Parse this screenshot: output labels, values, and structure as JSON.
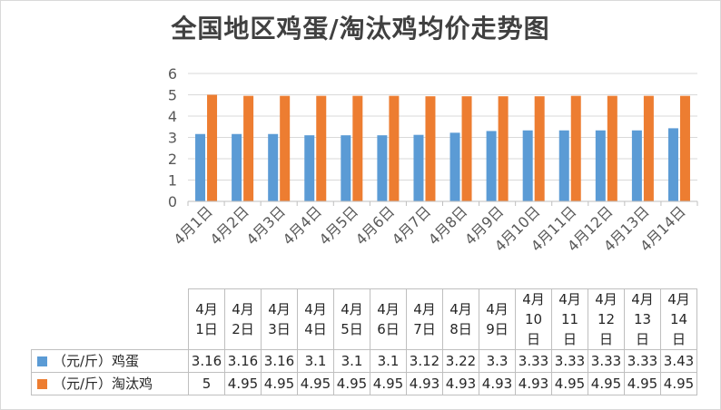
{
  "colors": {
    "egg": "#5b9bd5",
    "hen": "#ed7d31",
    "grid": "#d9d9d9",
    "axis": "#bfbfbf"
  },
  "chart_data": {
    "type": "bar",
    "title": "全国地区鸡蛋/淘汰鸡均价走势图",
    "categories": [
      "4月1日",
      "4月2日",
      "4月3日",
      "4月4日",
      "4月5日",
      "4月6日",
      "4月7日",
      "4月8日",
      "4月9日",
      "4月10日",
      "4月11日",
      "4月12日",
      "4月13日",
      "4月14日"
    ],
    "series": [
      {
        "name": "（元/斤）鸡蛋",
        "values": [
          3.16,
          3.16,
          3.16,
          3.1,
          3.1,
          3.1,
          3.12,
          3.22,
          3.3,
          3.33,
          3.33,
          3.33,
          3.33,
          3.43
        ]
      },
      {
        "name": "（元/斤）淘汰鸡",
        "values": [
          5,
          4.95,
          4.95,
          4.95,
          4.95,
          4.95,
          4.93,
          4.93,
          4.93,
          4.93,
          4.95,
          4.95,
          4.95,
          4.95
        ]
      }
    ],
    "value_labels": [
      [
        "3.16",
        "3.16",
        "3.16",
        "3.1",
        "3.1",
        "3.1",
        "3.12",
        "3.22",
        "3.3",
        "3.33",
        "3.33",
        "3.33",
        "3.33",
        "3.43"
      ],
      [
        "5",
        "4.95",
        "4.95",
        "4.95",
        "4.95",
        "4.95",
        "4.93",
        "4.93",
        "4.93",
        "4.93",
        "4.95",
        "4.95",
        "4.95",
        "4.95"
      ]
    ],
    "ylim": [
      0,
      6
    ],
    "yticks": [
      "0",
      "1",
      "2",
      "3",
      "4",
      "5",
      "6"
    ],
    "grid": true,
    "legend": "data-table"
  }
}
